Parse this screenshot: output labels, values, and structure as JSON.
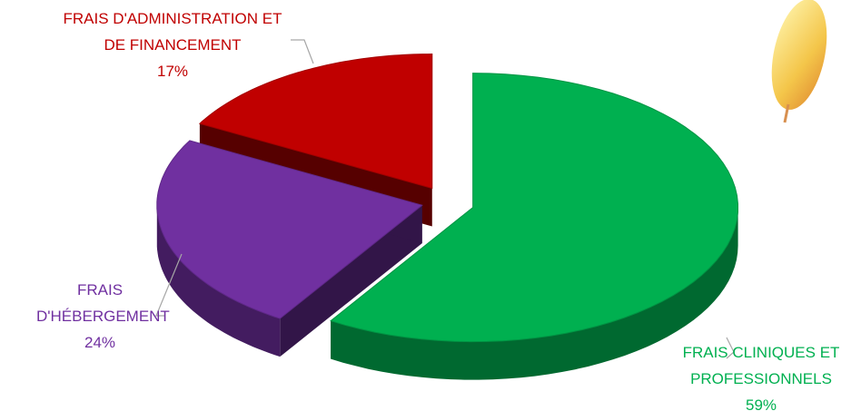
{
  "chart_data": {
    "type": "pie",
    "categories": [
      "FRAIS CLINIQUES ET PROFESSIONNELS",
      "FRAIS D'HÉBERGEMENT",
      "FRAIS D'ADMINISTRATION ET DE FINANCEMENT"
    ],
    "values": [
      59,
      24,
      17
    ],
    "value_labels": [
      "59%",
      "24%",
      "17%"
    ],
    "colors": [
      "#00b050",
      "#7030a0",
      "#c00000"
    ]
  }
}
